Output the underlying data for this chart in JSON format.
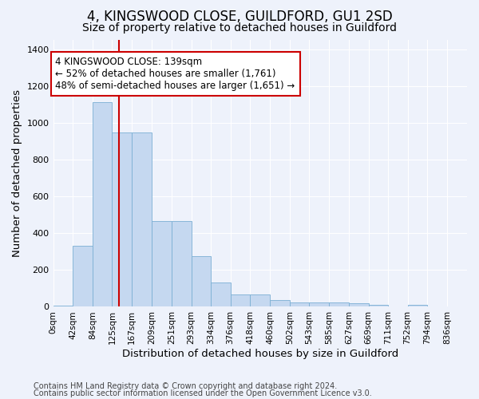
{
  "title": "4, KINGSWOOD CLOSE, GUILDFORD, GU1 2SD",
  "subtitle": "Size of property relative to detached houses in Guildford",
  "xlabel": "Distribution of detached houses by size in Guildford",
  "ylabel": "Number of detached properties",
  "bin_labels": [
    "0sqm",
    "42sqm",
    "84sqm",
    "125sqm",
    "167sqm",
    "209sqm",
    "251sqm",
    "293sqm",
    "334sqm",
    "376sqm",
    "418sqm",
    "460sqm",
    "502sqm",
    "543sqm",
    "585sqm",
    "627sqm",
    "669sqm",
    "711sqm",
    "752sqm",
    "794sqm",
    "836sqm"
  ],
  "bar_values": [
    8,
    330,
    1110,
    945,
    945,
    465,
    465,
    275,
    130,
    68,
    68,
    38,
    25,
    25,
    25,
    20,
    12,
    0,
    12,
    0,
    0
  ],
  "bin_edges": [
    0,
    42,
    84,
    125,
    167,
    209,
    251,
    293,
    334,
    376,
    418,
    460,
    502,
    543,
    585,
    627,
    669,
    711,
    752,
    794,
    836
  ],
  "bar_color": "#c5d8f0",
  "bar_edgecolor": "#7bafd4",
  "property_size": 139,
  "redline_color": "#cc0000",
  "annotation_text": "4 KINGSWOOD CLOSE: 139sqm\n← 52% of detached houses are smaller (1,761)\n48% of semi-detached houses are larger (1,651) →",
  "annotation_box_edgecolor": "#cc0000",
  "annotation_box_facecolor": "#ffffff",
  "ylim": [
    0,
    1450
  ],
  "xlim": [
    0,
    878
  ],
  "yticks": [
    0,
    200,
    400,
    600,
    800,
    1000,
    1200,
    1400
  ],
  "footer_line1": "Contains HM Land Registry data © Crown copyright and database right 2024.",
  "footer_line2": "Contains public sector information licensed under the Open Government Licence v3.0.",
  "background_color": "#eef2fb",
  "grid_color": "#ffffff",
  "title_fontsize": 12,
  "subtitle_fontsize": 10,
  "axis_label_fontsize": 9.5,
  "tick_fontsize": 7.5,
  "annotation_fontsize": 8.5,
  "footer_fontsize": 7
}
